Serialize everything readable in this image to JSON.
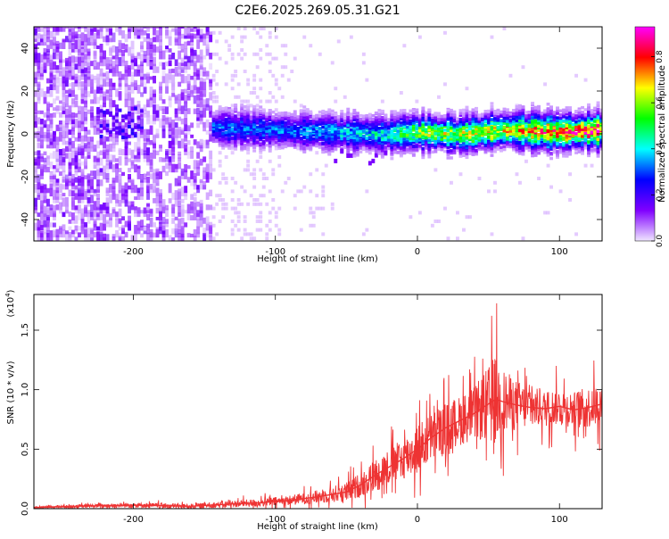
{
  "title": "C2E6.2025.269.05.31.G21",
  "chart_data": [
    {
      "type": "heatmap",
      "xlabel": "Height of straight line (km)",
      "ylabel": "Frequency (Hz)",
      "xlim": [
        -270,
        130
      ],
      "ylim": [
        -50,
        50
      ],
      "xticks": [
        -200,
        -100,
        0,
        100
      ],
      "yticks": [
        -40,
        -20,
        0,
        20,
        40
      ],
      "colorbar": {
        "label": "Normalized spectral amplitude",
        "range": [
          0.0,
          0.93
        ],
        "ticks": [
          0.0,
          0.2,
          0.4,
          0.6,
          0.8
        ],
        "colors": [
          "#f0e6ff",
          "#8000ff",
          "#0000ff",
          "#00ffff",
          "#00ff00",
          "#ffff00",
          "#ff0000",
          "#ff00ff"
        ]
      },
      "ridge": [
        {
          "x": -145,
          "f": 3,
          "amp": 0.3
        },
        {
          "x": -100,
          "f": 2,
          "amp": 0.32
        },
        {
          "x": -60,
          "f": 1,
          "amp": 0.35
        },
        {
          "x": -25,
          "f": 0,
          "amp": 0.4
        },
        {
          "x": 0,
          "f": 1,
          "amp": 0.55
        },
        {
          "x": 30,
          "f": 0,
          "amp": 0.6
        },
        {
          "x": 60,
          "f": 2,
          "amp": 0.65
        },
        {
          "x": 100,
          "f": 1,
          "amp": 0.75
        },
        {
          "x": 130,
          "f": 2,
          "amp": 0.8
        }
      ]
    },
    {
      "type": "line",
      "xlabel": "Height of straight line (km)",
      "ylabel": "SNR (10 * v/v)",
      "yscale_label": "(x10",
      "yscale_exp": "4",
      "yscale_close": ")",
      "xlim": [
        -270,
        130
      ],
      "ylim": [
        0,
        1.8
      ],
      "xticks": [
        -200,
        -100,
        0,
        100
      ],
      "yticks": [
        0.0,
        0.5,
        1.0,
        1.5
      ],
      "ytick_labels": [
        "0.0",
        "0.5",
        "1.0",
        "1.5"
      ],
      "color": "#ee3333",
      "x": [
        -270,
        -240,
        -200,
        -160,
        -130,
        -110,
        -90,
        -70,
        -50,
        -40,
        -30,
        -20,
        -10,
        0,
        10,
        20,
        30,
        40,
        50,
        55,
        60,
        70,
        80,
        90,
        100,
        110,
        120,
        130
      ],
      "y": [
        0.01,
        0.02,
        0.03,
        0.02,
        0.04,
        0.05,
        0.07,
        0.1,
        0.14,
        0.2,
        0.28,
        0.35,
        0.42,
        0.5,
        0.6,
        0.68,
        0.74,
        0.8,
        0.88,
        0.92,
        0.9,
        0.87,
        0.85,
        0.84,
        0.86,
        0.83,
        0.85,
        0.88
      ],
      "spread": [
        0.01,
        0.02,
        0.03,
        0.03,
        0.04,
        0.05,
        0.06,
        0.08,
        0.12,
        0.15,
        0.2,
        0.22,
        0.25,
        0.3,
        0.3,
        0.3,
        0.3,
        0.32,
        0.45,
        0.55,
        0.4,
        0.3,
        0.25,
        0.22,
        0.22,
        0.22,
        0.25,
        0.25
      ]
    }
  ]
}
